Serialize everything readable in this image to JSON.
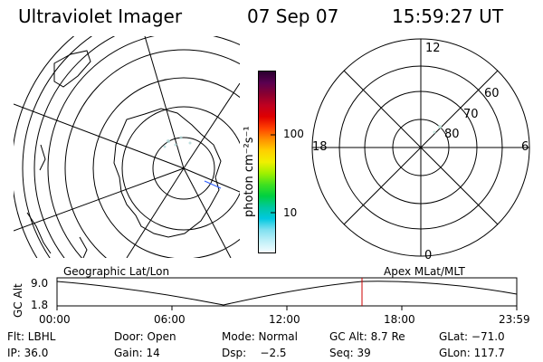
{
  "header": {
    "instrument": "Ultraviolet Imager",
    "date": "07 Sep 07",
    "time": "15:59:27 UT"
  },
  "colorbar": {
    "unit_label": "photon cm⁻²s⁻¹",
    "ticks": [
      "100",
      "10"
    ],
    "colors_top_to_bottom": [
      "#2b0030",
      "#5a0050",
      "#8a0030",
      "#c00020",
      "#e00000",
      "#ff4000",
      "#ff9000",
      "#ffd000",
      "#f0f000",
      "#a0f000",
      "#40e020",
      "#00d040",
      "#00c8a0",
      "#00c8e0",
      "#80e0f0",
      "#c0f0f8",
      "#f4fcff"
    ]
  },
  "polar_plot": {
    "lat_labels": [
      "60",
      "70",
      "80"
    ],
    "mlt_labels": {
      "top": "12",
      "left": "18",
      "right": "6",
      "bottom": "0"
    }
  },
  "timeline": {
    "left_label": "Geographic Lat/Lon",
    "right_label": "Apex MLat/MLT",
    "ylabel": "GC Alt",
    "y_top": "9.0",
    "y_bottom": "1.8",
    "x_ticks": [
      "00:00",
      "06:00",
      "12:00",
      "18:00",
      "23:59"
    ],
    "marker_color": "#cc0000"
  },
  "status": {
    "row1": {
      "flt": "Flt: LBHL",
      "door": "Door: Open",
      "mode": "Mode: Normal",
      "gc_alt": "GC Alt: 8.7 Re",
      "glat": "GLat: −71.0"
    },
    "row2": {
      "ip": "IP: 36.0",
      "gain": "Gain: 14",
      "dsp": "Dsp:    −2.5",
      "seq": "Seq: 39",
      "glon": "GLon: 117.7"
    }
  }
}
